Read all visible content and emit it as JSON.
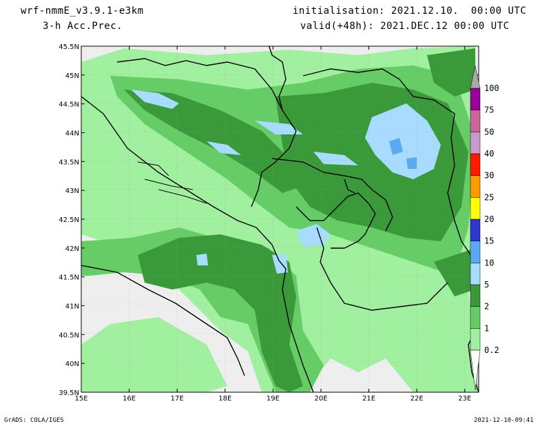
{
  "header": {
    "model": "wrf-nmmE_v3.9.1-e3km",
    "field": "3-h Acc.Prec.",
    "init": "initialisation: 2021.12.10.  00:00 UTC",
    "valid": "valid(+48h): 2021.DEC.12 00:00 UTC"
  },
  "footer": {
    "left": "GrADS: COLA/IGES",
    "right": "2021-12-10-09:41"
  },
  "axes": {
    "lon_labels": [
      "15E",
      "16E",
      "17E",
      "18E",
      "19E",
      "20E",
      "21E",
      "22E",
      "23E"
    ],
    "lat_labels": [
      "45.5N",
      "45N",
      "44.5N",
      "44N",
      "43.5N",
      "43N",
      "42.5N",
      "42N",
      "41.5N",
      "41N",
      "40.5N",
      "40N",
      "39.5N"
    ]
  },
  "colorbar": {
    "levels": [
      "0.2",
      "1",
      "2",
      "5",
      "10",
      "15",
      "20",
      "25",
      "30",
      "40",
      "50",
      "75",
      "100"
    ],
    "colors": [
      "#a0f0a0",
      "#66cc66",
      "#3a9a3a",
      "#a8dcff",
      "#5aaaf2",
      "#2d36cf",
      "#ffff00",
      "#ff9900",
      "#ff1a00",
      "#cc99cc",
      "#cc6699",
      "#990099",
      "#aaaaaa"
    ]
  },
  "map": {
    "background": "#eeeeee",
    "border_color": "#000000"
  }
}
